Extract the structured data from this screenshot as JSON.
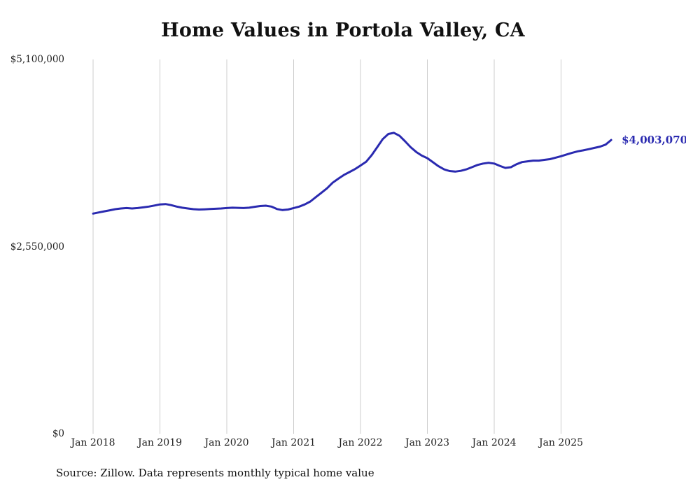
{
  "title": "Home Values in Portola Valley, CA",
  "source_note": "Source: Zillow. Data represents monthly typical home value",
  "colors": {
    "line": "#2a2ab0",
    "end_label": "#2a2ab0",
    "grid": "#cccccc",
    "text": "#222222",
    "title": "#111111"
  },
  "chart_data": {
    "type": "line",
    "title": "Home Values in Portola Valley, CA",
    "xlabel": "",
    "ylabel": "",
    "ylim": [
      0,
      5100000
    ],
    "y_ticks": [
      0,
      2550000,
      5100000
    ],
    "y_tick_labels": [
      "$0",
      "$2,550,000",
      "$5,100,000"
    ],
    "x_tick_labels": [
      "Jan 2018",
      "Jan 2019",
      "Jan 2020",
      "Jan 2021",
      "Jan 2022",
      "Jan 2023",
      "Jan 2024",
      "Jan 2025"
    ],
    "x_start": "Jan 2018",
    "x_end": "Oct 2025",
    "x_frequency": "monthly",
    "grid": "vertical-only",
    "legend": "none",
    "end_value": 4003070,
    "end_label": "$4,003,070",
    "series": [
      {
        "name": "Typical home value",
        "values": [
          3000000,
          3015000,
          3030000,
          3045000,
          3060000,
          3070000,
          3075000,
          3070000,
          3075000,
          3085000,
          3095000,
          3110000,
          3125000,
          3130000,
          3115000,
          3095000,
          3080000,
          3070000,
          3060000,
          3055000,
          3058000,
          3062000,
          3066000,
          3070000,
          3075000,
          3080000,
          3078000,
          3075000,
          3080000,
          3092000,
          3103000,
          3108000,
          3095000,
          3062000,
          3048000,
          3055000,
          3075000,
          3095000,
          3125000,
          3165000,
          3225000,
          3285000,
          3345000,
          3420000,
          3475000,
          3525000,
          3565000,
          3605000,
          3655000,
          3705000,
          3795000,
          3905000,
          4015000,
          4085000,
          4100000,
          4060000,
          3985000,
          3905000,
          3840000,
          3790000,
          3755000,
          3700000,
          3645000,
          3602000,
          3580000,
          3572000,
          3582000,
          3602000,
          3632000,
          3662000,
          3682000,
          3692000,
          3682000,
          3650000,
          3622000,
          3632000,
          3672000,
          3702000,
          3712000,
          3722000,
          3722000,
          3732000,
          3742000,
          3762000,
          3782000,
          3805000,
          3828000,
          3848000,
          3862000,
          3878000,
          3895000,
          3912000,
          3940000,
          4003070
        ]
      }
    ]
  }
}
